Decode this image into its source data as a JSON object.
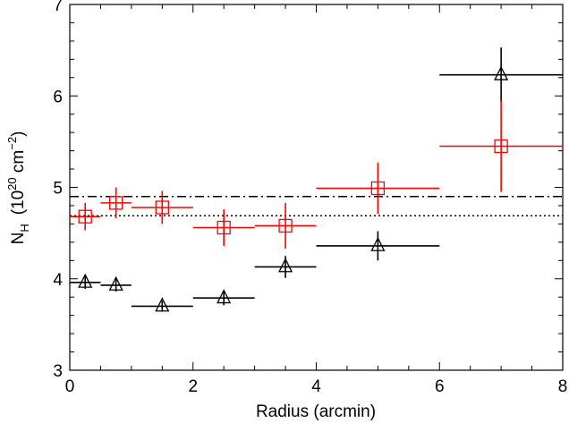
{
  "chart_data": {
    "type": "scatter",
    "title": "",
    "xlabel": "Radius (arcmin)",
    "ylabel": {
      "symbol": "N",
      "subscript": "H",
      "unit_open": "(10",
      "unit_exp": "20",
      "unit_mid": " cm",
      "unit_exp2": "−2",
      "unit_close": ")"
    },
    "xlim": [
      0,
      8
    ],
    "ylim": [
      3,
      7
    ],
    "x_ticks": [
      "0",
      "2",
      "4",
      "6",
      "8"
    ],
    "y_ticks": [
      "3",
      "4",
      "5",
      "6",
      "7"
    ],
    "grid": false,
    "series": [
      {
        "marker": "triangle",
        "color": "#000000",
        "points": [
          {
            "x": 0.25,
            "xerr": 0.25,
            "y": 3.96,
            "yerr": 0.07
          },
          {
            "x": 0.75,
            "xerr": 0.25,
            "y": 3.93,
            "yerr": 0.07
          },
          {
            "x": 1.5,
            "xerr": 0.5,
            "y": 3.7,
            "yerr": 0.06
          },
          {
            "x": 2.5,
            "xerr": 0.5,
            "y": 3.79,
            "yerr": 0.08
          },
          {
            "x": 3.5,
            "xerr": 0.5,
            "y": 4.13,
            "yerr": 0.12
          },
          {
            "x": 5.0,
            "xerr": 1.0,
            "y": 4.36,
            "yerr": 0.16
          },
          {
            "x": 7.0,
            "xerr": 1.0,
            "y": 6.23,
            "yerr": 0.3
          }
        ]
      },
      {
        "marker": "square",
        "color": "#ff0000",
        "points": [
          {
            "x": 0.25,
            "xerr": 0.25,
            "y": 4.68,
            "yerr": 0.15
          },
          {
            "x": 0.75,
            "xerr": 0.25,
            "y": 4.83,
            "yerr": 0.17
          },
          {
            "x": 1.5,
            "xerr": 0.5,
            "y": 4.78,
            "yerr": 0.18
          },
          {
            "x": 2.5,
            "xerr": 0.5,
            "y": 4.56,
            "yerr": 0.2
          },
          {
            "x": 3.5,
            "xerr": 0.5,
            "y": 4.58,
            "yerr": 0.25
          },
          {
            "x": 5.0,
            "xerr": 1.0,
            "y": 4.99,
            "yerr": 0.28
          },
          {
            "x": 7.0,
            "xerr": 1.0,
            "y": 5.45,
            "yerr": 0.5
          }
        ]
      }
    ],
    "reference_lines": [
      {
        "style": "dash-dot",
        "color": "#000000",
        "y": 4.9
      },
      {
        "style": "dotted",
        "color": "#000000",
        "y": 4.69
      }
    ]
  }
}
